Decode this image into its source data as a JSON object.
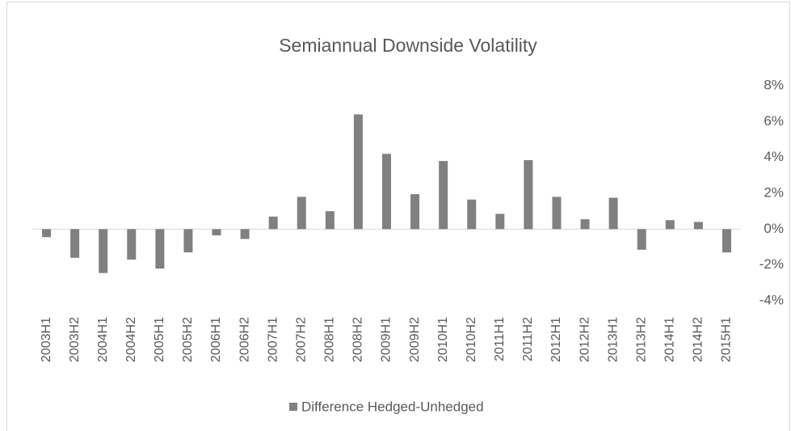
{
  "chart_data": {
    "type": "bar",
    "title": "Semiannual Downside Volatility",
    "categories": [
      "2003H1",
      "2003H2",
      "2004H1",
      "2004H2",
      "2005H1",
      "2005H2",
      "2006H1",
      "2006H2",
      "2007H1",
      "2007H2",
      "2008H1",
      "2008H2",
      "2009H1",
      "2009H2",
      "2010H1",
      "2010H2",
      "2011H1",
      "2011H2",
      "2012H1",
      "2012H2",
      "2013H1",
      "2013H2",
      "2014H1",
      "2014H2",
      "2015H1"
    ],
    "series": [
      {
        "name": "Difference Hedged-Unhedged",
        "color": "#808080",
        "values": [
          -0.45,
          -1.6,
          -2.45,
          -1.7,
          -2.2,
          -1.3,
          -0.35,
          -0.55,
          0.7,
          1.8,
          1.0,
          6.4,
          4.2,
          1.95,
          3.8,
          1.65,
          0.85,
          3.85,
          1.8,
          0.55,
          1.75,
          -1.15,
          0.5,
          0.4,
          -1.3
        ]
      }
    ],
    "ylim": [
      -4,
      8
    ],
    "yticks": [
      {
        "value": -4,
        "label": "-4%"
      },
      {
        "value": -2,
        "label": "-2%"
      },
      {
        "value": 0,
        "label": "0%"
      },
      {
        "value": 2,
        "label": "2%"
      },
      {
        "value": 4,
        "label": "4%"
      },
      {
        "value": 6,
        "label": "6%"
      },
      {
        "value": 8,
        "label": "8%"
      }
    ],
    "legend": "bottom"
  }
}
